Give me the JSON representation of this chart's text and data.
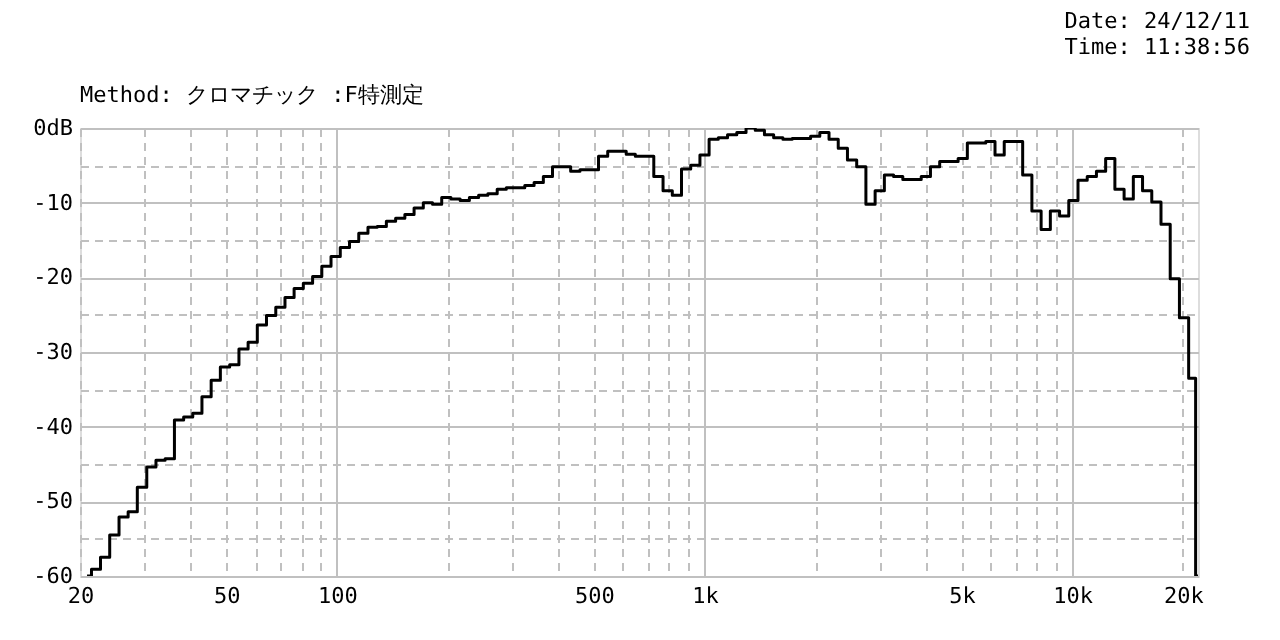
{
  "chart_data": {
    "type": "step",
    "subtitle": "Method: クロマチック :F特測定",
    "annotations": [
      "Date: 24/12/11",
      "Time: 11:38:56"
    ],
    "log": "x",
    "grid": true,
    "xlim": [
      20,
      22000
    ],
    "ylim": [
      -60,
      0
    ],
    "xticks": [
      20,
      {
        "value": 30,
        "label": null
      },
      {
        "value": 40,
        "label": null
      },
      50,
      {
        "value": 60,
        "label": null
      },
      {
        "value": 70,
        "label": null
      },
      {
        "value": 80,
        "label": null
      },
      {
        "value": 90,
        "label": null
      },
      100,
      {
        "value": 200,
        "label": null
      },
      {
        "value": 300,
        "label": null
      },
      {
        "value": 400,
        "label": null
      },
      500,
      {
        "value": 600,
        "label": null
      },
      {
        "value": 700,
        "label": null
      },
      {
        "value": 800,
        "label": null
      },
      {
        "value": 900,
        "label": null
      },
      {
        "value": 1000,
        "label": "1k"
      },
      {
        "value": 2000,
        "label": null
      },
      {
        "value": 3000,
        "label": null
      },
      {
        "value": 4000,
        "label": null
      },
      {
        "value": 5000,
        "label": "5k"
      },
      {
        "value": 6000,
        "label": null
      },
      {
        "value": 7000,
        "label": null
      },
      {
        "value": 8000,
        "label": null
      },
      {
        "value": 9000,
        "label": null
      },
      {
        "value": 10000,
        "label": "10k"
      },
      {
        "value": 20000,
        "label": "20k"
      }
    ],
    "yticks": [
      {
        "value": 0,
        "label": "0dB"
      },
      {
        "value": -5,
        "label": null
      },
      -10,
      {
        "value": -15,
        "label": null
      },
      -20,
      {
        "value": -25,
        "label": null
      },
      -30,
      {
        "value": -35,
        "label": null
      },
      -40,
      {
        "value": -45,
        "label": null
      },
      -50,
      {
        "value": -55,
        "label": null
      },
      -60
    ],
    "x": [
      20.9,
      22.1,
      23.4,
      24.8,
      26.3,
      27.8,
      29.5,
      31.3,
      33.1,
      35.1,
      37.2,
      39.4,
      41.7,
      44.2,
      46.8,
      49.6,
      52.6,
      55.7,
      59.0,
      62.5,
      66.2,
      70.2,
      74.3,
      78.7,
      83.4,
      88.4,
      93.6,
      99.2,
      105.1,
      111.4,
      118.0,
      125,
      132.4,
      140.3,
      148.7,
      157.5,
      166.9,
      176.8,
      187.3,
      198.4,
      210.2,
      222.7,
      236,
      250,
      265,
      281,
      297,
      315,
      334,
      354,
      375,
      397,
      420,
      445,
      472,
      500,
      530,
      561,
      595,
      630,
      667,
      707,
      749,
      794,
      841,
      891,
      944,
      1000,
      1059,
      1122,
      1189,
      1260,
      1335,
      1414,
      1498,
      1587,
      1682,
      1782,
      1888,
      2000,
      2119,
      2245,
      2378,
      2520,
      2670,
      2828,
      2997,
      3175,
      3364,
      3564,
      3775,
      4000,
      4238,
      4490,
      4757,
      5040,
      5339,
      5657,
      5993,
      6350,
      6727,
      7127,
      7551,
      8000,
      8476,
      8980,
      9514,
      10079,
      10679,
      11314,
      11986,
      12699,
      13454,
      14254,
      15102,
      16000,
      16951,
      17959,
      19027,
      20159,
      21357,
      22000
    ],
    "series": [
      {
        "color": "#000000",
        "values": [
          -60,
          -59.1,
          -57.5,
          -54.5,
          -52.1,
          -51.4,
          -48.1,
          -45.4,
          -44.5,
          -44.3,
          -39.1,
          -38.7,
          -38.2,
          -36.0,
          -33.8,
          -32.0,
          -31.7,
          -29.6,
          -28.7,
          -26.4,
          -25.1,
          -24.0,
          -22.7,
          -21.5,
          -20.8,
          -19.9,
          -18.5,
          -17.2,
          -16.0,
          -15.2,
          -14.1,
          -13.3,
          -13.2,
          -12.5,
          -12.1,
          -11.6,
          -10.7,
          -10.0,
          -10.2,
          -9.3,
          -9.5,
          -9.7,
          -9.3,
          -9.0,
          -8.8,
          -8.2,
          -8.0,
          -8.0,
          -7.7,
          -7.3,
          -6.5,
          -5.2,
          -5.2,
          -5.8,
          -5.6,
          -5.6,
          -3.8,
          -3.1,
          -3.1,
          -3.5,
          -3.8,
          -3.8,
          -6.5,
          -8.4,
          -9.0,
          -5.5,
          -5.0,
          -3.6,
          -1.5,
          -1.3,
          -0.9,
          -0.6,
          0,
          -0.3,
          -0.9,
          -1.3,
          -1.5,
          -1.4,
          -1.4,
          -1.1,
          -0.6,
          -1.5,
          -2.7,
          -4.3,
          -5.2,
          -10.2,
          -8.4,
          -6.3,
          -6.5,
          -6.9,
          -6.9,
          -6.5,
          -5.2,
          -4.5,
          -4.5,
          -4.1,
          -2.0,
          -2.0,
          -1.8,
          -3.6,
          -1.8,
          -1.8,
          -6.3,
          -11.1,
          -13.6,
          -11.1,
          -11.8,
          -9.7,
          -7.0,
          -6.5,
          -5.8,
          -4.1,
          -8.2,
          -9.5,
          -6.5,
          -8.4,
          -9.9,
          -12.9,
          -20.2,
          -25.4,
          -33.5,
          -60
        ]
      }
    ]
  }
}
